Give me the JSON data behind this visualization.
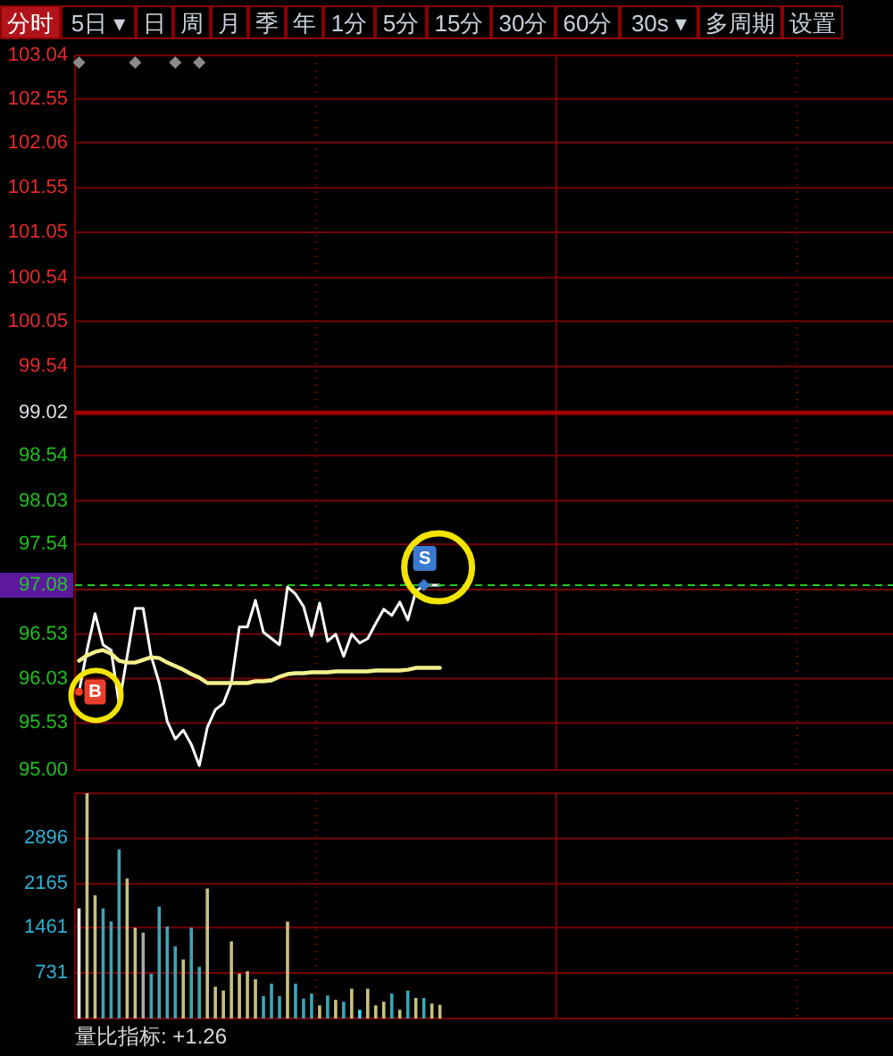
{
  "chart_data": [
    {
      "type": "other",
      "annotations": [
        "分时",
        "5日 ▾",
        "日",
        "周",
        "月",
        "季",
        "年",
        "1分",
        "5分",
        "15分",
        "30分",
        "60分",
        "30s ▾",
        "多周期",
        "设置"
      ]
    },
    {
      "type": "line",
      "categories": [
        null,
        null,
        null,
        null,
        null,
        null,
        null,
        null,
        null,
        null,
        null,
        null,
        null,
        null,
        null,
        null,
        null,
        null,
        null,
        null,
        null,
        null,
        null,
        null,
        null,
        null,
        null,
        null,
        null,
        null,
        null,
        null,
        null,
        null,
        null,
        null,
        null,
        null,
        null,
        null,
        null,
        null,
        null,
        null,
        null,
        null,
        null,
        null,
        null,
        null,
        null,
        null,
        null,
        null,
        null,
        null,
        null,
        null,
        null,
        null,
        null,
        null,
        null,
        null,
        null,
        null,
        null,
        null,
        null,
        null,
        null,
        null,
        null,
        null,
        null,
        null,
        null,
        null,
        null,
        null,
        null,
        null,
        null,
        null,
        null,
        null,
        null,
        null,
        null,
        null,
        null,
        null,
        null,
        null,
        null,
        null,
        null,
        null,
        null,
        null,
        null,
        null
      ],
      "series": [
        {
          "color": "#ffffff",
          "values": [
            95.88,
            96.35,
            96.76,
            96.41,
            96.35,
            95.74,
            96.28,
            96.82,
            96.82,
            96.28,
            95.98,
            95.55,
            95.35,
            95.45,
            95.29,
            95.05,
            95.48,
            95.68,
            95.75,
            95.98,
            96.61,
            96.61,
            96.91,
            96.55,
            96.48,
            96.41,
            97.06,
            96.98,
            96.84,
            96.51,
            96.88,
            96.45,
            96.53,
            96.28,
            96.53,
            96.43,
            96.48,
            96.65,
            96.81,
            96.74,
            96.89,
            96.69,
            97.01,
            97.08,
            97.08,
            97.08,
            null,
            null,
            null,
            null,
            null,
            null,
            null,
            null,
            null,
            null,
            null,
            null,
            null,
            null,
            null,
            null,
            null,
            null,
            null,
            null,
            null,
            null,
            null,
            null,
            null,
            null,
            null,
            null,
            null,
            null,
            null,
            null,
            null,
            null,
            null,
            null,
            null,
            null,
            null,
            null,
            null,
            null,
            null,
            null,
            null,
            null,
            null,
            null,
            null,
            null,
            null,
            null,
            null,
            null,
            null,
            null
          ]
        },
        {
          "color": "#f2f08c",
          "values": [
            96.23,
            96.29,
            96.33,
            96.35,
            96.31,
            96.23,
            96.21,
            96.21,
            96.24,
            96.27,
            96.26,
            96.21,
            96.17,
            96.13,
            96.08,
            96.04,
            95.98,
            95.98,
            95.98,
            95.98,
            95.98,
            95.98,
            96,
            96,
            96.01,
            96.05,
            96.08,
            96.09,
            96.09,
            96.1,
            96.1,
            96.1,
            96.11,
            96.11,
            96.11,
            96.11,
            96.11,
            96.12,
            96.12,
            96.12,
            96.12,
            96.13,
            96.15,
            96.15,
            96.15,
            96.15,
            null,
            null,
            null,
            null,
            null,
            null,
            null,
            null,
            null,
            null,
            null,
            null,
            null,
            null,
            null,
            null,
            null,
            null,
            null,
            null,
            null,
            null,
            null,
            null,
            null,
            null,
            null,
            null,
            null,
            null,
            null,
            null,
            null,
            null,
            null,
            null,
            null,
            null,
            null,
            null,
            null,
            null,
            null,
            null,
            null,
            null,
            null,
            null,
            null,
            null,
            null,
            null,
            null,
            null,
            null,
            null
          ]
        }
      ],
      "ylim": [
        95,
        103.04
      ],
      "yticks": [
        103.04,
        102.55,
        102.06,
        101.55,
        101.05,
        100.54,
        100.05,
        99.54,
        99.02,
        98.54,
        98.03,
        97.54,
        {
          "value": 97.03,
          "label": null
        },
        96.53,
        96.03,
        95.53,
        {
          "value": 95,
          "label": "95.00"
        }
      ],
      "grid": "y",
      "tick_labels": "y",
      "ref_lines": [
        {
          "axis": "y",
          "value": 99.02,
          "color": "#a00000",
          "line_style": "solid"
        },
        {
          "axis": "y",
          "value": 97.08,
          "label": "97.08",
          "color": "#22c822",
          "line_style": "dashed"
        }
      ],
      "annotations": [
        {
          "text": "B",
          "y": 95.88
        },
        {
          "text": "S",
          "y": 97.08
        }
      ]
    },
    {
      "type": "bar",
      "categories": [
        null,
        null,
        null,
        null,
        null,
        null,
        null,
        null,
        null,
        null,
        null,
        null,
        null,
        null,
        null,
        null,
        null,
        null,
        null,
        null,
        null,
        null,
        null,
        null,
        null,
        null,
        null,
        null,
        null,
        null,
        null,
        null,
        null,
        null,
        null,
        null,
        null,
        null,
        null,
        null,
        null,
        null,
        null,
        null,
        null,
        null,
        null,
        null,
        null,
        null,
        null,
        null,
        null,
        null,
        null,
        null,
        null,
        null,
        null,
        null,
        null,
        null,
        null,
        null,
        null,
        null,
        null,
        null,
        null,
        null,
        null,
        null,
        null,
        null,
        null,
        null,
        null,
        null,
        null,
        null,
        null,
        null,
        null,
        null,
        null,
        null,
        null,
        null,
        null,
        null,
        null,
        null,
        null,
        null,
        null,
        null,
        null,
        null,
        null,
        null,
        null,
        null
      ],
      "values": [
        1770,
        3620,
        1980,
        1770,
        1560,
        2720,
        2250,
        1460,
        1380,
        720,
        1800,
        1480,
        1160,
        950,
        1460,
        830,
        2090,
        510,
        450,
        1240,
        720,
        760,
        630,
        360,
        560,
        360,
        1560,
        560,
        320,
        400,
        210,
        370,
        300,
        270,
        480,
        140,
        480,
        210,
        270,
        400,
        140,
        450,
        330,
        330,
        240,
        220,
        null,
        null,
        null,
        null,
        null,
        null,
        null,
        null,
        null,
        null,
        null,
        null,
        null,
        null,
        null,
        null,
        null,
        null,
        null,
        null,
        null,
        null,
        null,
        null,
        null,
        null,
        null,
        null,
        null,
        null,
        null,
        null,
        null,
        null,
        null,
        null,
        null,
        null,
        null,
        null,
        null,
        null,
        null,
        null,
        null,
        null,
        null,
        null,
        null,
        null,
        null,
        null,
        null,
        null,
        null,
        null
      ],
      "colors": [
        "#f0f0f0",
        "#c8c07c",
        "#c8c07c",
        "#3aa6b8",
        "#3aa6b8",
        "#3aa6b8",
        "#c8c07c",
        "#c8c07c",
        "#a8a8a8",
        "#3aa6b8",
        "#3aa6b8",
        "#3aa6b8",
        "#3aa6b8",
        "#c8c07c",
        "#3aa6b8",
        "#3aa6b8",
        "#c8c07c",
        "#c8c07c",
        "#c8c07c",
        "#c8c07c",
        "#c8c07c",
        "#c8c07c",
        "#c8c07c",
        "#3aa6b8",
        "#3aa6b8",
        "#3aa6b8",
        "#c8c07c",
        "#3aa6b8",
        "#3aa6b8",
        "#3aa6b8",
        "#c8c07c",
        "#3aa6b8",
        "#c8c07c",
        "#3aa6b8",
        "#c8c07c",
        "#40d8f0",
        "#c8c07c",
        "#c8c07c",
        "#c8c07c",
        "#3aa6b8",
        "#c8c07c",
        "#3aa6b8",
        "#c8c07c",
        "#3aa6b8",
        "#c8c07c",
        "#c8c07c",
        null,
        null,
        null,
        null,
        null,
        null,
        null,
        null,
        null,
        null,
        null,
        null,
        null,
        null,
        null,
        null,
        null,
        null,
        null,
        null,
        null,
        null,
        null,
        null,
        null,
        null,
        null,
        null,
        null,
        null,
        null,
        null,
        null,
        null,
        null,
        null,
        null,
        null,
        null,
        null,
        null,
        null,
        null,
        null,
        null,
        null,
        null,
        null,
        null,
        null,
        null,
        null,
        null,
        null,
        null,
        null
      ],
      "ylim": [
        0,
        3620
      ],
      "yticks": [
        731,
        1461,
        2165,
        2896
      ],
      "grid": "y",
      "tick_labels": "y",
      "annotations": [
        "量比指标: +1.26"
      ]
    }
  ]
}
